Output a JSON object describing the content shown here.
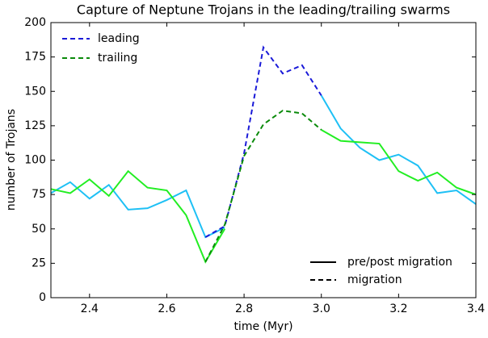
{
  "chart_data": {
    "type": "line",
    "title": "Capture of Neptune Trojans in the leading/trailing swarms",
    "xlabel": "time (Myr)",
    "ylabel": "number of Trojans",
    "x": [
      2.3,
      2.35,
      2.4,
      2.45,
      2.5,
      2.55,
      2.6,
      2.65,
      2.7,
      2.75,
      2.8,
      2.85,
      2.9,
      2.95,
      3.0,
      3.05,
      3.1,
      3.15,
      3.2,
      3.25,
      3.3,
      3.35,
      3.4
    ],
    "series": [
      {
        "name": "leading",
        "color": "#1a1ad8",
        "pre_post_color": "#1ec0f5",
        "values": [
          76,
          84,
          72,
          82,
          64,
          65,
          71,
          78,
          44,
          51,
          null,
          null,
          null,
          null,
          147,
          123,
          109,
          100,
          104,
          96,
          76,
          78,
          68
        ],
        "migration_values": [
          null,
          null,
          null,
          null,
          null,
          null,
          null,
          null,
          44,
          52,
          105,
          182,
          163,
          169,
          147,
          null,
          null,
          null,
          null,
          null,
          null,
          null,
          null
        ]
      },
      {
        "name": "trailing",
        "color": "#0a8a0a",
        "pre_post_color": "#22ee22",
        "values": [
          79,
          76,
          86,
          74,
          92,
          80,
          78,
          60,
          26,
          50,
          null,
          null,
          null,
          null,
          122,
          114,
          113,
          112,
          92,
          85,
          91,
          80,
          75
        ],
        "migration_values": [
          null,
          null,
          null,
          null,
          null,
          null,
          null,
          null,
          26,
          53,
          103,
          126,
          136,
          134,
          122,
          null,
          null,
          null,
          null,
          null,
          null,
          null,
          null
        ]
      }
    ],
    "line_style_legend": [
      "pre/post migration",
      "migration"
    ],
    "legend": "upper left",
    "line_style_legend_position": "lower right",
    "xlim": [
      2.3,
      3.4
    ],
    "xticks": [
      2.4,
      2.6,
      2.8,
      {
        "value": 3,
        "label": "3.0"
      },
      3.2,
      3.4
    ],
    "ylim": [
      0,
      200
    ],
    "yticks": [
      0,
      25,
      50,
      75,
      100,
      125,
      150,
      175,
      200
    ]
  }
}
